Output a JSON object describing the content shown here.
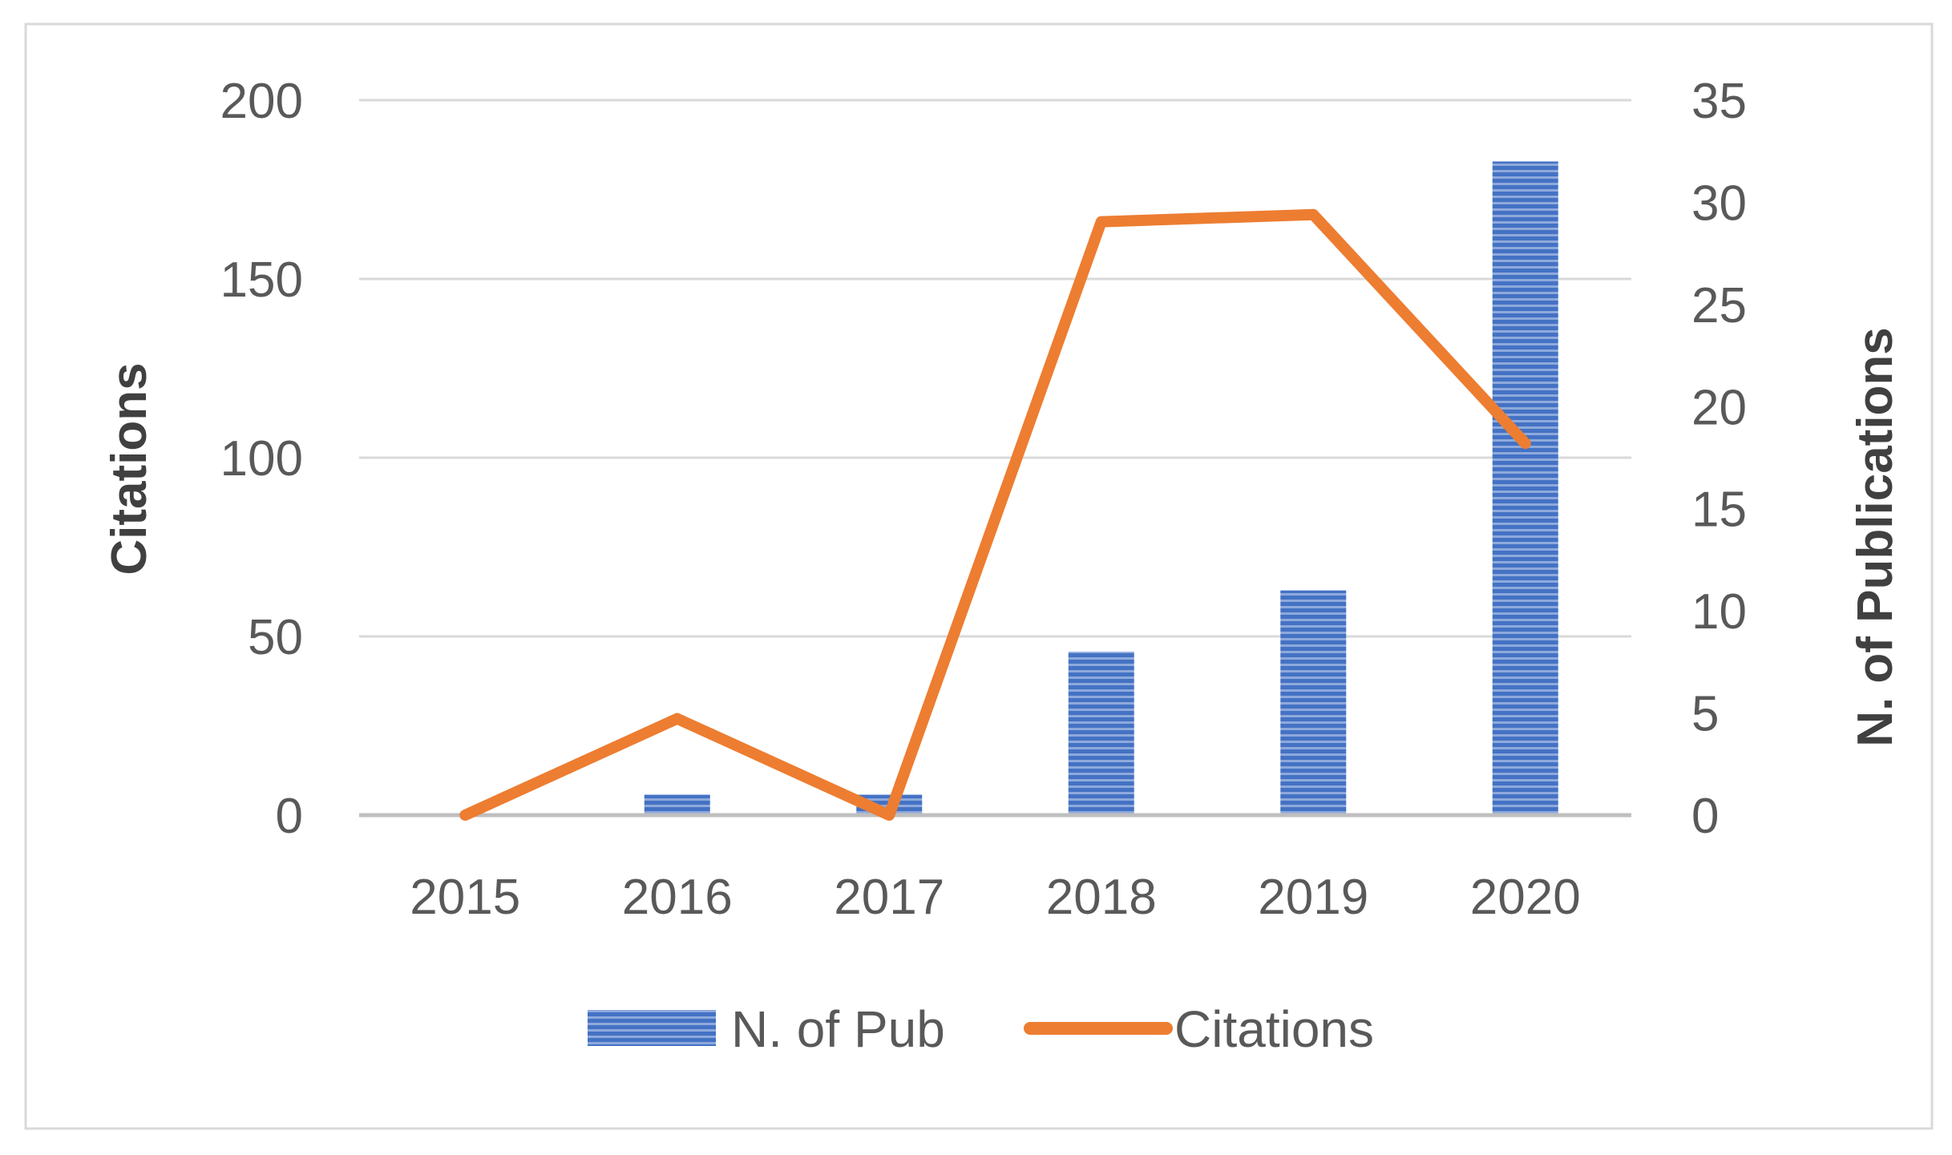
{
  "chart_data": {
    "type": "bar",
    "categories": [
      "2015",
      "2016",
      "2017",
      "2018",
      "2019",
      "2020"
    ],
    "series": [
      {
        "name": "N. of Pub",
        "type": "bar",
        "axis": "right",
        "values": [
          0,
          1,
          1,
          8,
          11,
          32
        ],
        "color": "#4472C4"
      },
      {
        "name": "Citations",
        "type": "line",
        "axis": "left",
        "values": [
          0,
          27,
          0,
          166,
          168,
          104
        ],
        "color": "#ED7D31"
      }
    ],
    "ylabel": "Citations",
    "ylim": [
      0,
      200
    ],
    "yticks": [
      "0",
      "50",
      "100",
      "150",
      "200"
    ],
    "y2label": "N. of Publications",
    "y2lim": [
      0,
      35
    ],
    "y2ticks": [
      "0",
      "5",
      "10",
      "15",
      "20",
      "25",
      "30",
      "35"
    ],
    "grid": true,
    "legend": "bottom",
    "colors": {
      "bar": "#4472C4",
      "line": "#ED7D31",
      "grid": "#D9D9D9",
      "axis": "#BFBFBF",
      "border": "#D9D9D9"
    }
  }
}
